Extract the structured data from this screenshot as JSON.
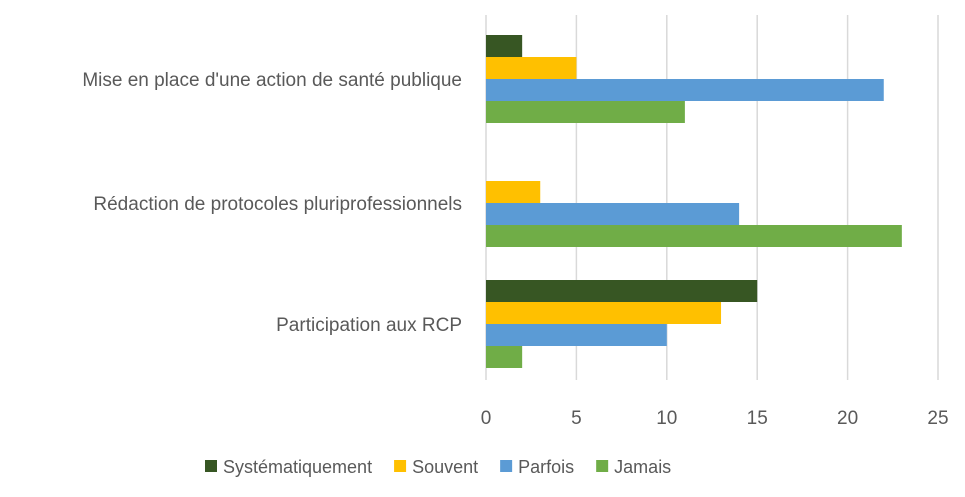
{
  "chart_data": {
    "type": "bar",
    "orientation": "horizontal",
    "categories": [
      "Mise en place d'une action de santé publique",
      "Rédaction de protocoles pluriprofessionnels",
      "Participation aux RCP"
    ],
    "series": [
      {
        "name": "Systématiquement",
        "color": "#375623",
        "values": [
          2,
          0,
          15
        ]
      },
      {
        "name": "Souvent",
        "color": "#ffc000",
        "values": [
          5,
          3,
          13
        ]
      },
      {
        "name": "Parfois",
        "color": "#5b9bd5",
        "values": [
          22,
          14,
          10
        ]
      },
      {
        "name": "Jamais",
        "color": "#70ad47",
        "values": [
          11,
          23,
          2
        ]
      }
    ],
    "xlim": [
      0,
      25
    ],
    "xticks": [
      "0",
      "5",
      "10",
      "15",
      "20",
      "25"
    ],
    "grid": true,
    "legend_position": "bottom"
  }
}
